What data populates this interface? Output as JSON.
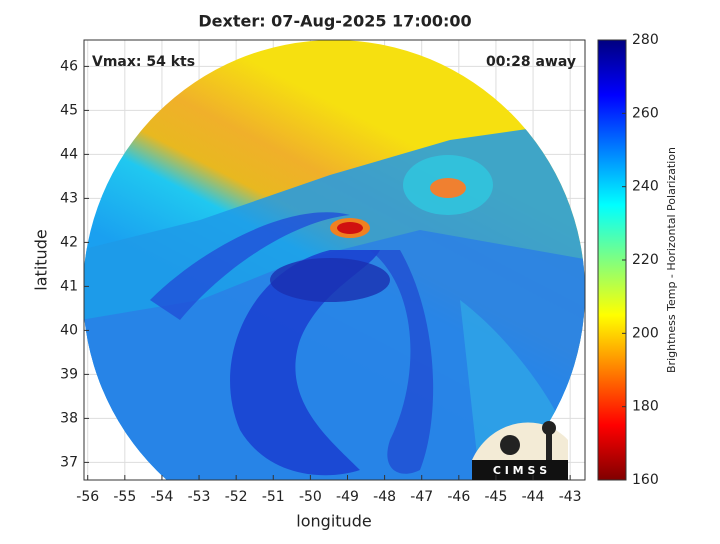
{
  "chart_data": {
    "type": "image_map",
    "title": "Dexter: 07-Aug-2025 17:00:00",
    "annotations": [
      "Vmax: 54 kts",
      "00:28 away"
    ],
    "x_label": "longitude",
    "y_label": "latitude",
    "xlim": [
      -56.1,
      -42.6
    ],
    "ylim": [
      36.6,
      46.6
    ],
    "xticks": [
      -56,
      -55,
      -54,
      -53,
      -52,
      -51,
      -50,
      -49,
      -48,
      -47,
      -46,
      -45,
      -44,
      -43
    ],
    "yticks": [
      37,
      38,
      39,
      40,
      41,
      42,
      43,
      44,
      45,
      46
    ],
    "grid": true,
    "colorbar": {
      "label": "Brightness Temp - Horizontal Polarization",
      "lim": [
        160,
        280
      ],
      "ticks": [
        160,
        180,
        200,
        220,
        240,
        260,
        280
      ],
      "colormap": [
        "#800000",
        "#ff0000",
        "#ff8000",
        "#ffff00",
        "#80ff80",
        "#00ffff",
        "#0080ff",
        "#0000ff",
        "#000080"
      ]
    },
    "logo_text": "C I M S S"
  }
}
